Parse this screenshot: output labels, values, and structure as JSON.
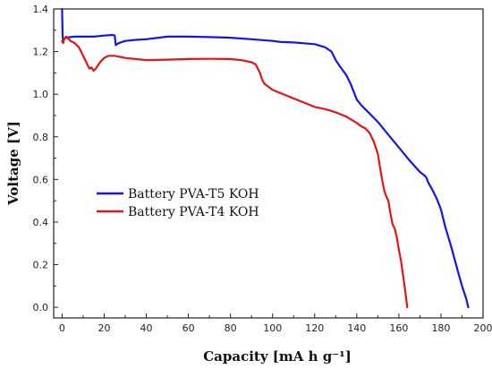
{
  "chart_data": {
    "type": "line",
    "title": "",
    "xlabel": "Capacity [mA h g⁻¹]",
    "ylabel": "Voltage [V]",
    "xlim": [
      -4,
      200
    ],
    "ylim": [
      -0.05,
      1.4
    ],
    "xticks": [
      0,
      20,
      40,
      60,
      80,
      100,
      120,
      140,
      160,
      180,
      200
    ],
    "yticks": [
      0.0,
      0.2,
      0.4,
      0.6,
      0.8,
      1.0,
      1.2,
      1.4
    ],
    "grid": false,
    "legend_position": "center-left",
    "series": [
      {
        "name": "Battery PVA-T5 KOH",
        "color": "#1515e6",
        "x": [
          0,
          0.2,
          0.4,
          1,
          2,
          4,
          6,
          10,
          15,
          20,
          24,
          25,
          25.5,
          26,
          27,
          30,
          35,
          40,
          50,
          60,
          70,
          80,
          90,
          100,
          104,
          110,
          120,
          125,
          128,
          130,
          132,
          135,
          137,
          139,
          140,
          142,
          145,
          150,
          155,
          160,
          165,
          170,
          172,
          173,
          174,
          176,
          178,
          180,
          182,
          185,
          188,
          190,
          192,
          193
        ],
        "y": [
          1.4,
          1.29,
          1.25,
          1.26,
          1.265,
          1.268,
          1.27,
          1.27,
          1.27,
          1.275,
          1.278,
          1.275,
          1.23,
          1.235,
          1.24,
          1.25,
          1.255,
          1.258,
          1.27,
          1.27,
          1.268,
          1.265,
          1.258,
          1.25,
          1.245,
          1.243,
          1.235,
          1.22,
          1.2,
          1.16,
          1.13,
          1.09,
          1.05,
          1.0,
          0.975,
          0.95,
          0.92,
          0.87,
          0.81,
          0.75,
          0.69,
          0.635,
          0.62,
          0.61,
          0.585,
          0.55,
          0.51,
          0.46,
          0.38,
          0.28,
          0.17,
          0.1,
          0.04,
          0.0
        ]
      },
      {
        "name": "Battery PVA-T4 KOH",
        "color": "#e61515",
        "x": [
          0,
          0.5,
          1,
          2,
          4,
          6,
          8,
          10,
          12,
          13,
          14,
          15,
          16,
          18,
          20,
          22,
          25,
          30,
          40,
          50,
          60,
          70,
          80,
          85,
          90,
          92,
          93,
          94,
          95,
          96,
          100,
          110,
          120,
          125,
          130,
          135,
          140,
          142,
          144,
          146,
          148,
          150,
          151,
          152,
          153,
          154,
          155,
          156,
          157,
          158,
          159,
          160,
          161,
          162,
          163,
          164
        ],
        "y": [
          1.25,
          1.24,
          1.26,
          1.27,
          1.25,
          1.24,
          1.22,
          1.18,
          1.14,
          1.12,
          1.125,
          1.11,
          1.12,
          1.15,
          1.17,
          1.18,
          1.18,
          1.17,
          1.16,
          1.162,
          1.165,
          1.166,
          1.165,
          1.16,
          1.15,
          1.14,
          1.12,
          1.1,
          1.07,
          1.05,
          1.02,
          0.98,
          0.94,
          0.93,
          0.915,
          0.895,
          0.865,
          0.85,
          0.84,
          0.82,
          0.78,
          0.72,
          0.66,
          0.6,
          0.55,
          0.52,
          0.5,
          0.44,
          0.39,
          0.37,
          0.33,
          0.27,
          0.22,
          0.15,
          0.08,
          0.0
        ]
      }
    ]
  }
}
